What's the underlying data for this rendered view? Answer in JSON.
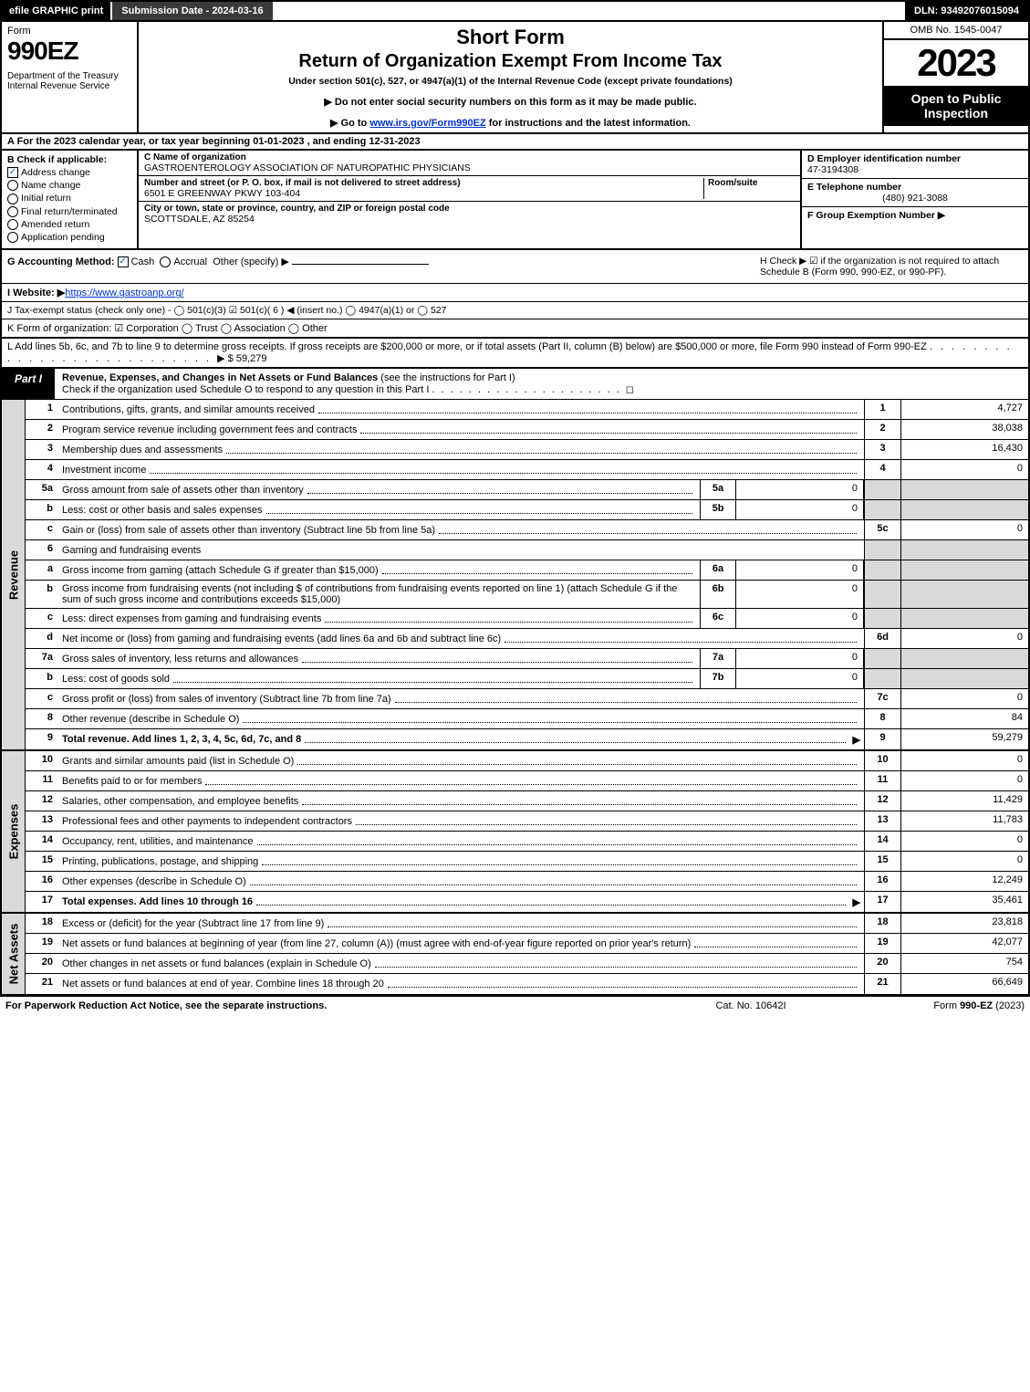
{
  "topbar": {
    "efile": "efile GRAPHIC print",
    "subdate_label": "Submission Date - 2024-03-16",
    "dln": "DLN: 93492076015094"
  },
  "header": {
    "form_label": "Form",
    "form_number": "990EZ",
    "dept": "Department of the Treasury\nInternal Revenue Service",
    "short_form": "Short Form",
    "return_title": "Return of Organization Exempt From Income Tax",
    "under": "Under section 501(c), 527, or 4947(a)(1) of the Internal Revenue Code (except private foundations)",
    "note1": "▶ Do not enter social security numbers on this form as it may be made public.",
    "note2_pre": "▶ Go to ",
    "note2_link": "www.irs.gov/Form990EZ",
    "note2_post": " for instructions and the latest information.",
    "omb": "OMB No. 1545-0047",
    "year": "2023",
    "open": "Open to Public Inspection"
  },
  "section_a": "A  For the 2023 calendar year, or tax year beginning 01-01-2023 , and ending 12-31-2023",
  "col_b": {
    "title": "B  Check if applicable:",
    "items": [
      "Address change",
      "Name change",
      "Initial return",
      "Final return/terminated",
      "Amended return",
      "Application pending"
    ],
    "checked_idx": 0
  },
  "col_c": {
    "name_label": "C Name of organization",
    "name": "GASTROENTEROLOGY ASSOCIATION OF NATUROPATHIC PHYSICIANS",
    "street_label": "Number and street (or P. O. box, if mail is not delivered to street address)",
    "room_label": "Room/suite",
    "street": "6501 E GREENWAY PKWY 103-404",
    "city_label": "City or town, state or province, country, and ZIP or foreign postal code",
    "city": "SCOTTSDALE, AZ  85254"
  },
  "col_def": {
    "d_label": "D Employer identification number",
    "d_val": "47-3194308",
    "e_label": "E Telephone number",
    "e_val": "(480) 921-3088",
    "f_label": "F Group Exemption Number   ▶"
  },
  "row_g": {
    "label": "G Accounting Method:",
    "cash": "Cash",
    "accrual": "Accrual",
    "other": "Other (specify) ▶"
  },
  "row_h": {
    "text": "H  Check ▶ ☑ if the organization is not required to attach Schedule B (Form 990, 990-EZ, or 990-PF)."
  },
  "row_i": {
    "label": "I Website: ▶",
    "url": "https://www.gastroanp.org/"
  },
  "row_j": "J Tax-exempt status (check only one) - ◯ 501(c)(3) ☑ 501(c)( 6 ) ◀ (insert no.) ◯ 4947(a)(1) or ◯ 527",
  "row_k": "K Form of organization:  ☑ Corporation  ◯ Trust  ◯ Association  ◯ Other",
  "row_l": {
    "text": "L Add lines 5b, 6c, and 7b to line 9 to determine gross receipts. If gross receipts are $200,000 or more, or if total assets (Part II, column (B) below) are $500,000 or more, file Form 990 instead of Form 990-EZ",
    "amount": "▶ $ 59,279"
  },
  "part1": {
    "tab": "Part I",
    "title": "Revenue, Expenses, and Changes in Net Assets or Fund Balances",
    "paren": "(see the instructions for Part I)",
    "check": "Check if the organization used Schedule O to respond to any question in this Part I",
    "check_box": "◻"
  },
  "revenue_label": "Revenue",
  "expenses_label": "Expenses",
  "netassets_label": "Net Assets",
  "lines": {
    "l1": {
      "n": "1",
      "d": "Contributions, gifts, grants, and similar amounts received",
      "box": "1",
      "v": "4,727"
    },
    "l2": {
      "n": "2",
      "d": "Program service revenue including government fees and contracts",
      "box": "2",
      "v": "38,038"
    },
    "l3": {
      "n": "3",
      "d": "Membership dues and assessments",
      "box": "3",
      "v": "16,430"
    },
    "l4": {
      "n": "4",
      "d": "Investment income",
      "box": "4",
      "v": "0"
    },
    "l5a": {
      "n": "5a",
      "d": "Gross amount from sale of assets other than inventory",
      "sub": "5a",
      "sv": "0"
    },
    "l5b": {
      "n": "b",
      "d": "Less: cost or other basis and sales expenses",
      "sub": "5b",
      "sv": "0"
    },
    "l5c": {
      "n": "c",
      "d": "Gain or (loss) from sale of assets other than inventory (Subtract line 5b from line 5a)",
      "box": "5c",
      "v": "0"
    },
    "l6": {
      "n": "6",
      "d": "Gaming and fundraising events"
    },
    "l6a": {
      "n": "a",
      "d": "Gross income from gaming (attach Schedule G if greater than $15,000)",
      "sub": "6a",
      "sv": "0"
    },
    "l6b": {
      "n": "b",
      "d": "Gross income from fundraising events (not including $                    of contributions from fundraising events reported on line 1) (attach Schedule G if the sum of such gross income and contributions exceeds $15,000)",
      "sub": "6b",
      "sv": "0"
    },
    "l6c": {
      "n": "c",
      "d": "Less: direct expenses from gaming and fundraising events",
      "sub": "6c",
      "sv": "0"
    },
    "l6d": {
      "n": "d",
      "d": "Net income or (loss) from gaming and fundraising events (add lines 6a and 6b and subtract line 6c)",
      "box": "6d",
      "v": "0"
    },
    "l7a": {
      "n": "7a",
      "d": "Gross sales of inventory, less returns and allowances",
      "sub": "7a",
      "sv": "0"
    },
    "l7b": {
      "n": "b",
      "d": "Less: cost of goods sold",
      "sub": "7b",
      "sv": "0"
    },
    "l7c": {
      "n": "c",
      "d": "Gross profit or (loss) from sales of inventory (Subtract line 7b from line 7a)",
      "box": "7c",
      "v": "0"
    },
    "l8": {
      "n": "8",
      "d": "Other revenue (describe in Schedule O)",
      "box": "8",
      "v": "84"
    },
    "l9": {
      "n": "9",
      "d": "Total revenue. Add lines 1, 2, 3, 4, 5c, 6d, 7c, and 8",
      "box": "9",
      "v": "59,279",
      "arrow": true,
      "bold": true
    },
    "l10": {
      "n": "10",
      "d": "Grants and similar amounts paid (list in Schedule O)",
      "box": "10",
      "v": "0"
    },
    "l11": {
      "n": "11",
      "d": "Benefits paid to or for members",
      "box": "11",
      "v": "0"
    },
    "l12": {
      "n": "12",
      "d": "Salaries, other compensation, and employee benefits",
      "box": "12",
      "v": "11,429"
    },
    "l13": {
      "n": "13",
      "d": "Professional fees and other payments to independent contractors",
      "box": "13",
      "v": "11,783"
    },
    "l14": {
      "n": "14",
      "d": "Occupancy, rent, utilities, and maintenance",
      "box": "14",
      "v": "0"
    },
    "l15": {
      "n": "15",
      "d": "Printing, publications, postage, and shipping",
      "box": "15",
      "v": "0"
    },
    "l16": {
      "n": "16",
      "d": "Other expenses (describe in Schedule O)",
      "box": "16",
      "v": "12,249"
    },
    "l17": {
      "n": "17",
      "d": "Total expenses. Add lines 10 through 16",
      "box": "17",
      "v": "35,461",
      "arrow": true,
      "bold": true
    },
    "l18": {
      "n": "18",
      "d": "Excess or (deficit) for the year (Subtract line 17 from line 9)",
      "box": "18",
      "v": "23,818"
    },
    "l19": {
      "n": "19",
      "d": "Net assets or fund balances at beginning of year (from line 27, column (A)) (must agree with end-of-year figure reported on prior year's return)",
      "box": "19",
      "v": "42,077"
    },
    "l20": {
      "n": "20",
      "d": "Other changes in net assets or fund balances (explain in Schedule O)",
      "box": "20",
      "v": "754"
    },
    "l21": {
      "n": "21",
      "d": "Net assets or fund balances at end of year. Combine lines 18 through 20",
      "box": "21",
      "v": "66,649"
    }
  },
  "footer": {
    "f1": "For Paperwork Reduction Act Notice, see the separate instructions.",
    "f2": "Cat. No. 10642I",
    "f3": "Form 990-EZ (2023)"
  }
}
